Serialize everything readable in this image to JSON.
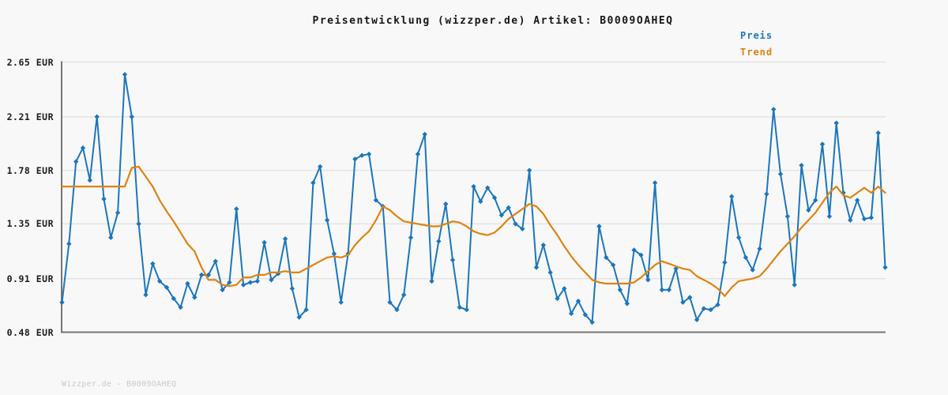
{
  "title": "Preisentwicklung (wizzper.de) Artikel: B0009OAHEQ",
  "watermark": "Wizzper.de - B0009OAHEQ",
  "colors": {
    "preis": "#1b76bb",
    "trend": "#e0820f",
    "grid": "#e3e3e3",
    "axis": "#757575",
    "text": "#161616",
    "watermark": "#c9c9c9",
    "background": "#f8f8f8"
  },
  "chart_data": {
    "type": "line",
    "title": "Preisentwicklung (wizzper.de) Artikel: B0009OAHEQ",
    "xlabel": "",
    "ylabel": "",
    "ylim": [
      0.48,
      2.65
    ],
    "grid": "horizontal",
    "legend_position": "top-right",
    "x_tick_labels": [],
    "y_ticks": [
      {
        "value": 2.65,
        "label": "2.65 EUR"
      },
      {
        "value": 2.21,
        "label": "2.21 EUR"
      },
      {
        "value": 1.78,
        "label": "1.78 EUR"
      },
      {
        "value": 1.35,
        "label": "1.35 EUR"
      },
      {
        "value": 0.91,
        "label": "0.91 EUR"
      },
      {
        "value": 0.48,
        "label": "0.48 EUR"
      }
    ],
    "series": [
      {
        "name": "Preis",
        "color": "#1b76bb",
        "marker": "diamond",
        "line_width": 2,
        "values": [
          0.72,
          1.19,
          1.85,
          1.96,
          1.7,
          2.21,
          1.55,
          1.24,
          1.44,
          2.55,
          2.21,
          1.35,
          0.78,
          1.03,
          0.89,
          0.84,
          0.75,
          0.68,
          0.87,
          0.76,
          0.94,
          0.94,
          1.05,
          0.82,
          0.88,
          1.47,
          0.86,
          0.88,
          0.89,
          1.2,
          0.9,
          0.95,
          1.23,
          0.83,
          0.6,
          0.66,
          1.68,
          1.81,
          1.38,
          1.11,
          0.72,
          1.11,
          1.87,
          1.9,
          1.91,
          1.54,
          1.49,
          0.72,
          0.66,
          0.78,
          1.24,
          1.91,
          2.07,
          0.89,
          1.21,
          1.51,
          1.06,
          0.68,
          0.66,
          1.65,
          1.53,
          1.64,
          1.56,
          1.42,
          1.48,
          1.35,
          1.31,
          1.78,
          1.0,
          1.18,
          0.96,
          0.75,
          0.83,
          0.63,
          0.73,
          0.62,
          0.56,
          1.33,
          1.08,
          1.02,
          0.82,
          0.71,
          1.14,
          1.1,
          0.9,
          1.68,
          0.82,
          0.82,
          0.99,
          0.72,
          0.76,
          0.58,
          0.67,
          0.66,
          0.7,
          1.04,
          1.57,
          1.24,
          1.08,
          0.98,
          1.15,
          1.59,
          2.27,
          1.75,
          1.41,
          0.86,
          1.82,
          1.46,
          1.54,
          1.99,
          1.41,
          2.16,
          1.6,
          1.38,
          1.54,
          1.39,
          1.4,
          2.08,
          1.0
        ]
      },
      {
        "name": "Trend",
        "color": "#e0820f",
        "marker": "none",
        "line_width": 2.2,
        "values": [
          1.65,
          1.65,
          1.65,
          1.65,
          1.65,
          1.65,
          1.65,
          1.65,
          1.65,
          1.65,
          1.8,
          1.81,
          1.73,
          1.65,
          1.54,
          1.45,
          1.37,
          1.28,
          1.19,
          1.13,
          1.0,
          0.9,
          0.9,
          0.86,
          0.85,
          0.86,
          0.92,
          0.92,
          0.94,
          0.94,
          0.96,
          0.96,
          0.97,
          0.96,
          0.96,
          0.99,
          1.02,
          1.05,
          1.08,
          1.09,
          1.08,
          1.1,
          1.18,
          1.24,
          1.29,
          1.38,
          1.49,
          1.46,
          1.41,
          1.37,
          1.36,
          1.35,
          1.34,
          1.33,
          1.33,
          1.35,
          1.37,
          1.36,
          1.33,
          1.29,
          1.27,
          1.26,
          1.28,
          1.33,
          1.39,
          1.43,
          1.47,
          1.51,
          1.49,
          1.43,
          1.34,
          1.26,
          1.17,
          1.09,
          1.02,
          0.96,
          0.9,
          0.88,
          0.87,
          0.87,
          0.87,
          0.87,
          0.88,
          0.92,
          0.97,
          1.02,
          1.05,
          1.03,
          1.01,
          0.99,
          0.98,
          0.93,
          0.9,
          0.87,
          0.83,
          0.77,
          0.84,
          0.89,
          0.9,
          0.91,
          0.93,
          0.99,
          1.06,
          1.13,
          1.19,
          1.25,
          1.32,
          1.38,
          1.44,
          1.52,
          1.6,
          1.65,
          1.58,
          1.56,
          1.6,
          1.64,
          1.6,
          1.65,
          1.6
        ]
      }
    ]
  }
}
